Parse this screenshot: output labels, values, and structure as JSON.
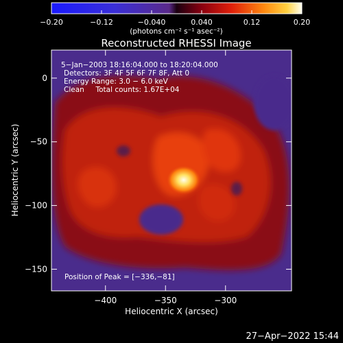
{
  "chart_data": {
    "type": "heatmap",
    "title": "Reconstructed RHESSI Image",
    "xlabel": "Heliocentric X (arcsec)",
    "ylabel": "Heliocentric Y (arcsec)",
    "xlim": [
      -445,
      -245
    ],
    "ylim": [
      -167,
      22
    ],
    "x_ticks": [
      -400,
      -350,
      -300
    ],
    "x_tick_labels": [
      "−400",
      "−350",
      "−300"
    ],
    "y_ticks": [
      0,
      -50,
      -100,
      -150
    ],
    "y_tick_labels": [
      "0",
      "−50",
      "−100",
      "−150"
    ],
    "colorbar": {
      "label": "(photons cm⁻² s⁻¹ asec⁻²)",
      "range": [
        -0.2,
        0.2
      ],
      "ticks": [
        -0.2,
        -0.12,
        -0.04,
        0.04,
        0.12,
        0.2
      ],
      "tick_labels": [
        "−0.20",
        "−0.12",
        "−0.040",
        "0.040",
        "0.12",
        "0.20"
      ]
    },
    "annotations": [
      "5−Jan−2003 18:16:04.000 to 18:20:04.000",
      "Detectors: 3F 4F 5F 6F 7F 8F, Att 0",
      "Energy Range: 3.0 − 6.0 keV",
      "Clean     Total counts: 1.67E+04"
    ],
    "peak_label": "Position of Peak = [−336,−81]",
    "peak": {
      "x": -336,
      "y": -81
    },
    "timestamp": "27−Apr−2022 15:44"
  },
  "colors": {
    "background": "#000000",
    "text": "#ffffff",
    "image_background": "#4a2c8c",
    "emission_low": "#8a0f18",
    "emission_mid": "#d4260e",
    "emission_high": "#ff8a10",
    "peak": "#ffffd8"
  }
}
